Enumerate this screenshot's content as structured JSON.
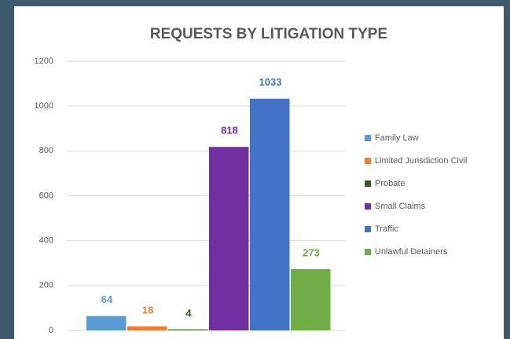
{
  "chart_data": {
    "type": "bar",
    "title": "REQUESTS BY LITIGATION TYPE",
    "categories": [
      null
    ],
    "series": [
      {
        "name": "Family Law",
        "color": "#5b9bd5",
        "values": [
          64
        ]
      },
      {
        "name": "Limited Jurisdiction Civil",
        "color": "#ed7d31",
        "values": [
          18
        ]
      },
      {
        "name": "Probate",
        "color": "#375623",
        "values": [
          4
        ]
      },
      {
        "name": "Small Claims",
        "color": "#7030a0",
        "values": [
          818
        ]
      },
      {
        "name": "Traffic",
        "color": "#4472c4",
        "values": [
          1033
        ]
      },
      {
        "name": "Unlawful Detainers",
        "color": "#70ad47",
        "values": [
          273
        ]
      }
    ],
    "ylim": [
      0,
      1200
    ],
    "yticks": [
      0,
      200,
      400,
      600,
      800,
      1000,
      1200
    ],
    "grid": true,
    "legend": "right"
  }
}
